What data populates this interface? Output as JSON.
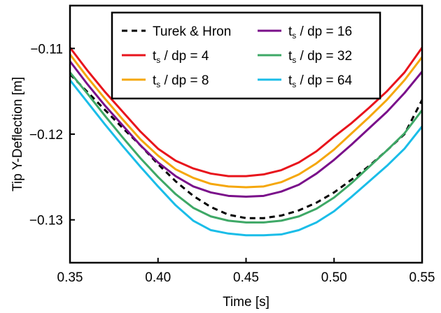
{
  "chart_data": {
    "type": "line",
    "title": "",
    "xlabel": "Time [s]",
    "ylabel": "Tip Y-Deflection [m]",
    "xlim": [
      0.35,
      0.55
    ],
    "ylim": [
      -0.135,
      -0.105
    ],
    "xticks": [
      0.35,
      0.4,
      0.45,
      0.5,
      0.55
    ],
    "xtick_labels": [
      "0.35",
      "0.40",
      "0.45",
      "0.50",
      "0.55"
    ],
    "yticks": [
      -0.13,
      -0.12,
      -0.11
    ],
    "ytick_labels": [
      "−0.13",
      "−0.12",
      "−0.11"
    ],
    "grid": false,
    "legend_position": "top-right",
    "x": [
      0.35,
      0.36,
      0.37,
      0.38,
      0.39,
      0.4,
      0.41,
      0.42,
      0.43,
      0.44,
      0.45,
      0.46,
      0.47,
      0.48,
      0.49,
      0.5,
      0.51,
      0.52,
      0.53,
      0.54,
      0.55
    ],
    "series": [
      {
        "name": "Turek & Hron",
        "name_parts": null,
        "color": "#000000",
        "dash": "8,6",
        "values": [
          -0.113,
          -0.1151,
          -0.1172,
          -0.1193,
          -0.1213,
          -0.1235,
          -0.1255,
          -0.1272,
          -0.1285,
          -0.1294,
          -0.1298,
          -0.1298,
          -0.1295,
          -0.1289,
          -0.128,
          -0.1268,
          -0.1253,
          -0.1237,
          -0.1219,
          -0.12,
          -0.116
        ]
      },
      {
        "name": "ts / dp = 4",
        "name_parts": {
          "t": "t",
          "sub": "s",
          "rest": " / dp = 4"
        },
        "color": "#e8141c",
        "dash": "",
        "values": [
          -0.1099,
          -0.1126,
          -0.1151,
          -0.1174,
          -0.1197,
          -0.1217,
          -0.1231,
          -0.124,
          -0.1246,
          -0.1249,
          -0.1249,
          -0.1247,
          -0.1242,
          -0.1233,
          -0.122,
          -0.1203,
          -0.1187,
          -0.1169,
          -0.115,
          -0.1128,
          -0.1099
        ]
      },
      {
        "name": "ts / dp = 8",
        "name_parts": {
          "t": "t",
          "sub": "s",
          "rest": " / dp = 8"
        },
        "color": "#f5a70b",
        "dash": "",
        "values": [
          -0.1107,
          -0.1134,
          -0.1159,
          -0.1183,
          -0.1206,
          -0.1225,
          -0.1241,
          -0.1251,
          -0.1258,
          -0.1261,
          -0.1262,
          -0.1261,
          -0.1256,
          -0.1247,
          -0.1234,
          -0.1218,
          -0.1199,
          -0.118,
          -0.116,
          -0.1137,
          -0.111
        ]
      },
      {
        "name": "ts / dp = 16",
        "name_parts": {
          "t": "t",
          "sub": "s",
          "rest": " / dp = 16"
        },
        "color": "#7a0f8a",
        "dash": "",
        "values": [
          -0.1115,
          -0.1142,
          -0.1167,
          -0.119,
          -0.1213,
          -0.1233,
          -0.1249,
          -0.1261,
          -0.1268,
          -0.1272,
          -0.1273,
          -0.1272,
          -0.1267,
          -0.1259,
          -0.1246,
          -0.123,
          -0.1212,
          -0.1193,
          -0.1174,
          -0.1152,
          -0.1127
        ]
      },
      {
        "name": "ts / dp = 32",
        "name_parts": {
          "t": "t",
          "sub": "s",
          "rest": " / dp = 32"
        },
        "color": "#3ea866",
        "dash": "",
        "values": [
          -0.1128,
          -0.1153,
          -0.1179,
          -0.1204,
          -0.1228,
          -0.125,
          -0.127,
          -0.1286,
          -0.1296,
          -0.1301,
          -0.1303,
          -0.1303,
          -0.1301,
          -0.1296,
          -0.1287,
          -0.1274,
          -0.1257,
          -0.1238,
          -0.1219,
          -0.1199,
          -0.1172
        ]
      },
      {
        "name": "ts / dp = 64",
        "name_parts": {
          "t": "t",
          "sub": "s",
          "rest": " / dp = 64"
        },
        "color": "#1abde8",
        "dash": "",
        "values": [
          -0.1137,
          -0.1163,
          -0.1189,
          -0.1214,
          -0.1238,
          -0.1261,
          -0.1283,
          -0.1301,
          -0.1312,
          -0.1316,
          -0.1318,
          -0.1318,
          -0.1317,
          -0.1312,
          -0.1303,
          -0.129,
          -0.1273,
          -0.1255,
          -0.1237,
          -0.1217,
          -0.1191
        ]
      }
    ],
    "legend_layout": [
      [
        0,
        3
      ],
      [
        1,
        4
      ],
      [
        2,
        5
      ]
    ]
  }
}
